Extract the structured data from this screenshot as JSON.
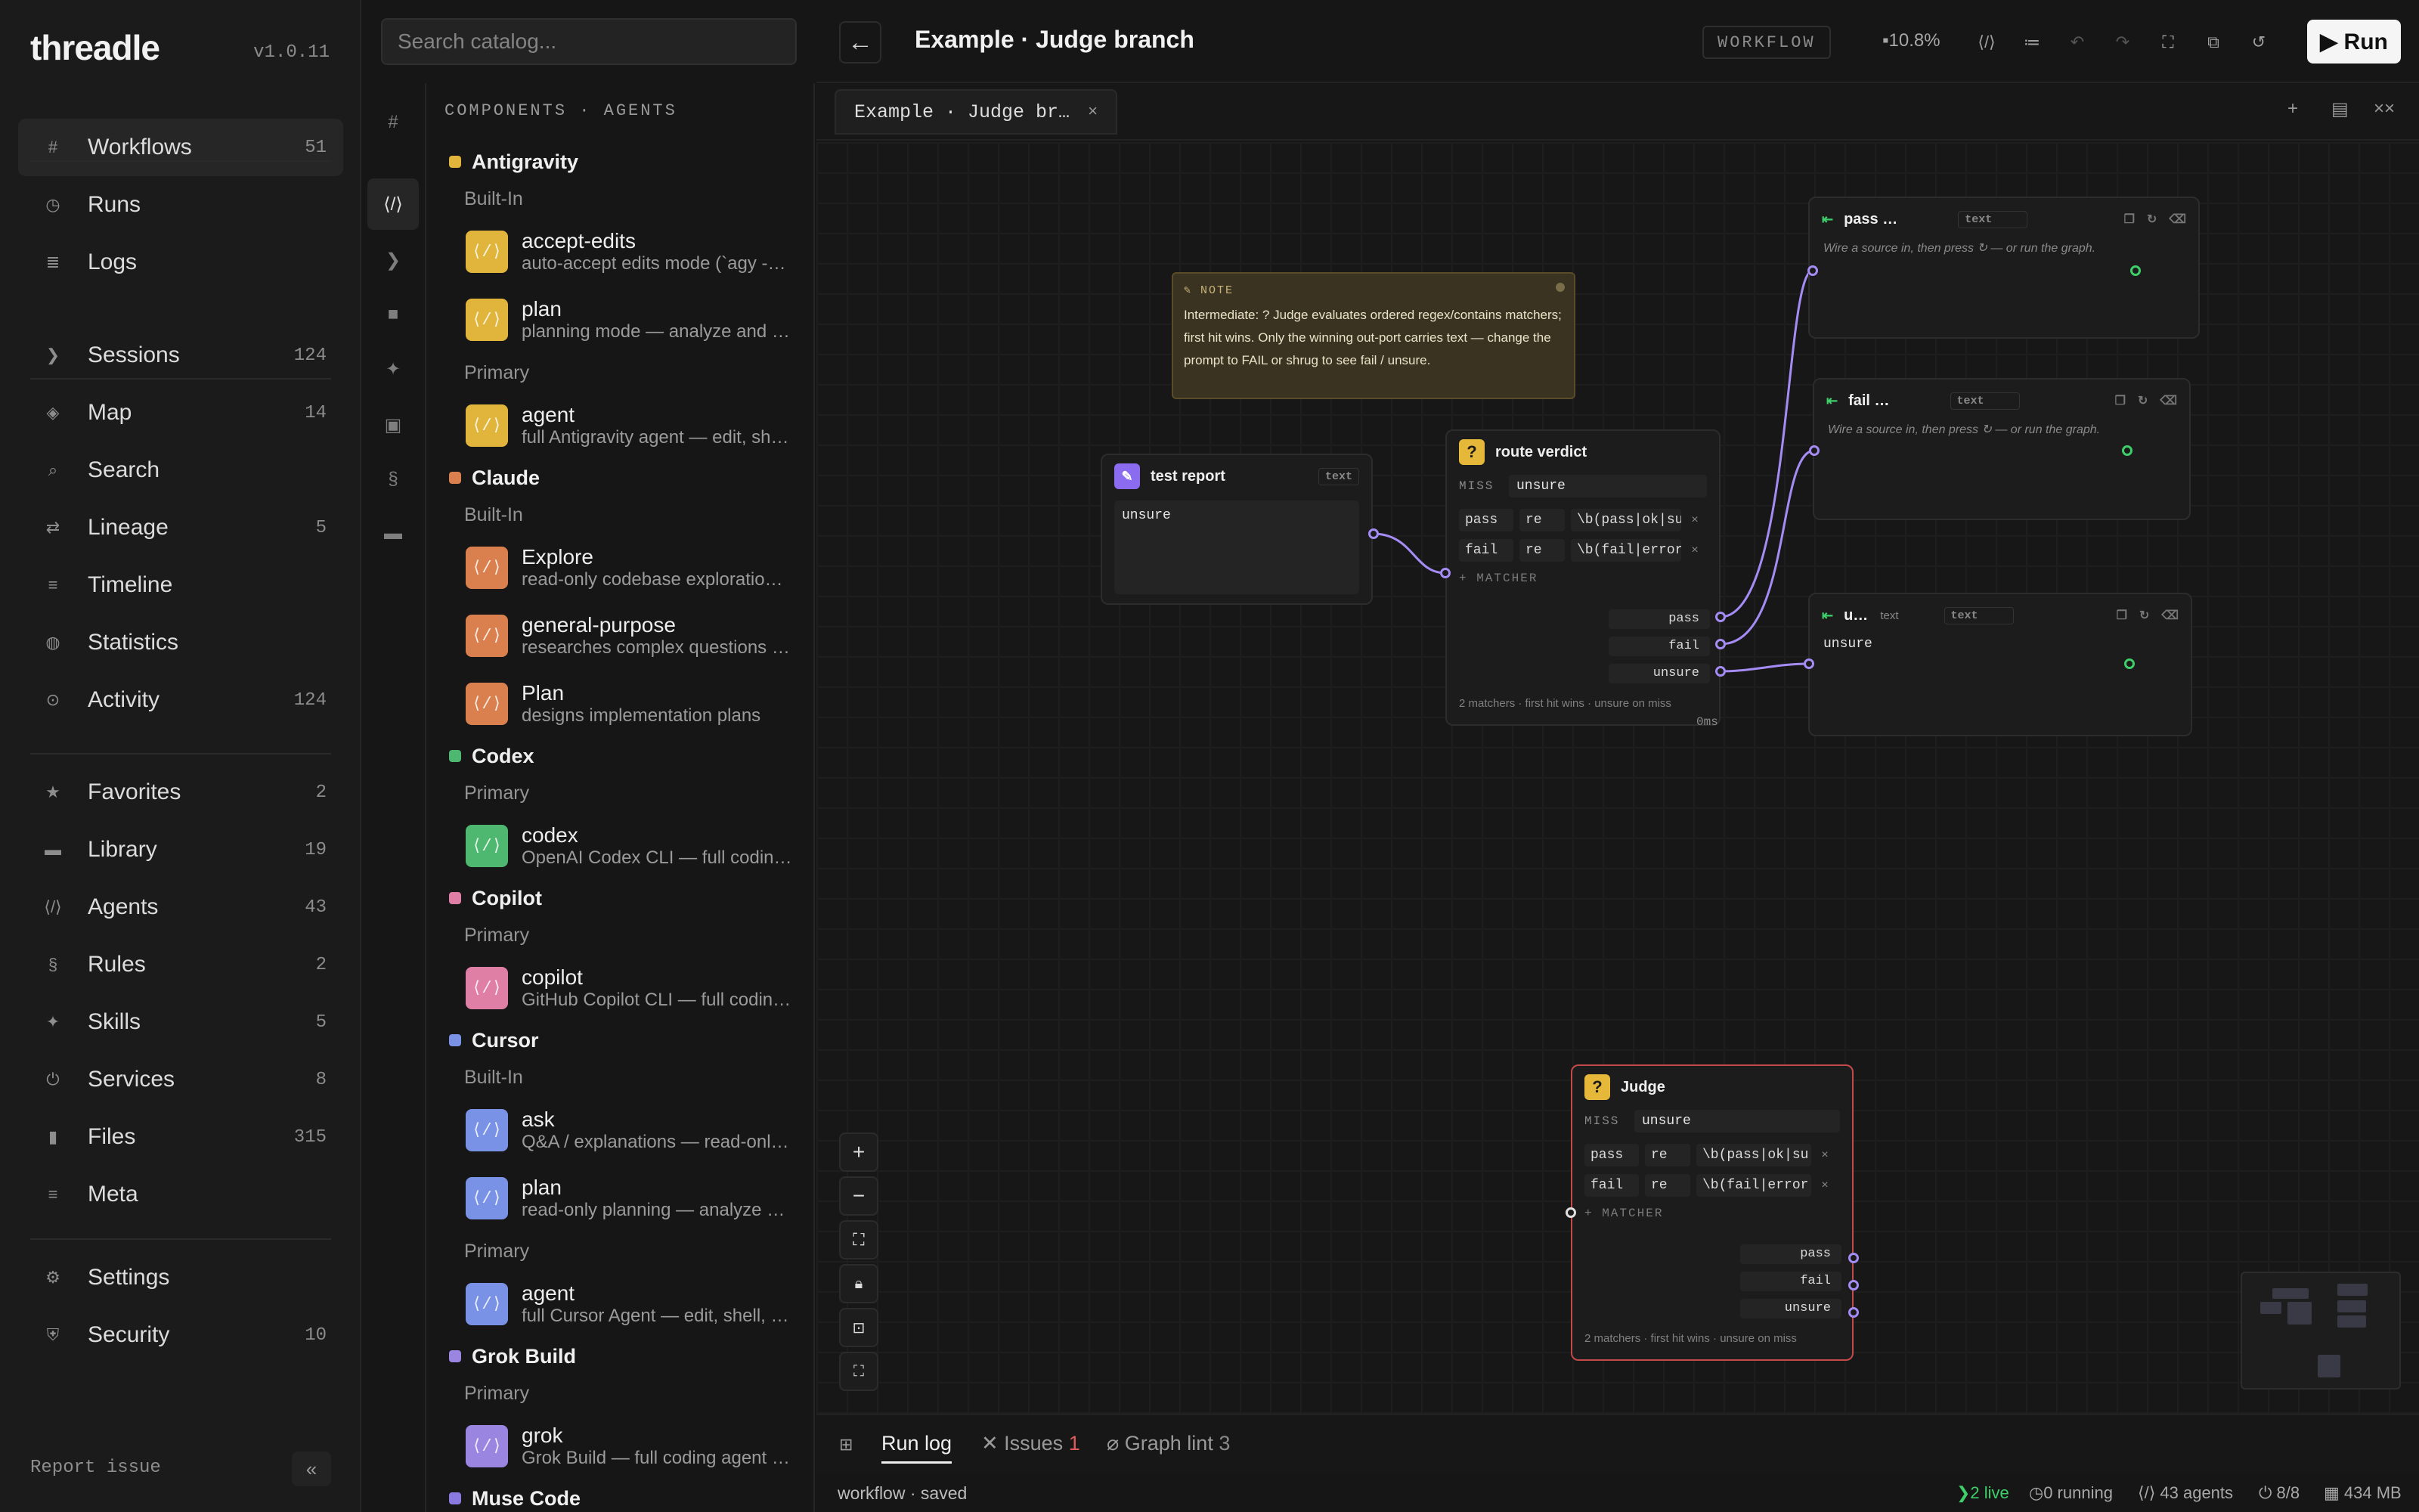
{
  "app": {
    "name": "threadle",
    "version": "v1.0.11"
  },
  "nav": {
    "group1": [
      {
        "icon": "#",
        "label": "Workflows",
        "count": "51",
        "active": true
      },
      {
        "icon": "◷",
        "label": "Runs",
        "count": ""
      },
      {
        "icon": "≣",
        "label": "Logs",
        "count": ""
      }
    ],
    "group2": [
      {
        "icon": "❯",
        "label": "Sessions",
        "count": "124"
      },
      {
        "icon": "◈",
        "label": "Map",
        "count": "14"
      },
      {
        "icon": "⌕",
        "label": "Search",
        "count": ""
      },
      {
        "icon": "⇄",
        "label": "Lineage",
        "count": "5"
      },
      {
        "icon": "≡",
        "label": "Timeline",
        "count": ""
      },
      {
        "icon": "◍",
        "label": "Statistics",
        "count": ""
      },
      {
        "icon": "⊙",
        "label": "Activity",
        "count": "124"
      }
    ],
    "group3": [
      {
        "icon": "★",
        "label": "Favorites",
        "count": "2"
      },
      {
        "icon": "▬",
        "label": "Library",
        "count": "19"
      },
      {
        "icon": "⟨/⟩",
        "label": "Agents",
        "count": "43"
      },
      {
        "icon": "§",
        "label": "Rules",
        "count": "2"
      },
      {
        "icon": "✦",
        "label": "Skills",
        "count": "5"
      },
      {
        "icon": "⏻",
        "label": "Services",
        "count": "8"
      },
      {
        "icon": "▮",
        "label": "Files",
        "count": "315"
      },
      {
        "icon": "≡",
        "label": "Meta",
        "count": ""
      }
    ],
    "group4": [
      {
        "icon": "⚙",
        "label": "Settings",
        "count": ""
      },
      {
        "icon": "⛨",
        "label": "Security",
        "count": "10"
      }
    ],
    "report_issue": "Report issue",
    "collapse_glyph": "«"
  },
  "rail": [
    "#",
    "⟨/⟩",
    "❯",
    "■",
    "✦",
    "▣",
    "§",
    "▬"
  ],
  "catalog": {
    "search_placeholder": "Search catalog...",
    "heading": "COMPONENTS · AGENTS",
    "groups": [
      {
        "name": "Antigravity",
        "color": "#e1b43c",
        "sections": [
          {
            "label": "Built-In",
            "items": [
              {
                "name": "accept-edits",
                "desc": "auto-accept edits mode (`agy -…"
              },
              {
                "name": "plan",
                "desc": "planning mode — analyze and …"
              }
            ]
          },
          {
            "label": "Primary",
            "items": [
              {
                "name": "agent",
                "desc": "full Antigravity agent — edit, sh…"
              }
            ]
          }
        ]
      },
      {
        "name": "Claude",
        "color": "#d9804e",
        "sections": [
          {
            "label": "Built-In",
            "items": [
              {
                "name": "Explore",
                "desc": "read-only codebase exploratio…"
              },
              {
                "name": "general-purpose",
                "desc": "researches complex questions …"
              },
              {
                "name": "Plan",
                "desc": "designs implementation plans"
              }
            ]
          }
        ]
      },
      {
        "name": "Codex",
        "color": "#4fb870",
        "sections": [
          {
            "label": "Primary",
            "items": [
              {
                "name": "codex",
                "desc": "OpenAI Codex CLI — full codin…"
              }
            ]
          }
        ]
      },
      {
        "name": "Copilot",
        "color": "#e07fa6",
        "sections": [
          {
            "label": "Primary",
            "items": [
              {
                "name": "copilot",
                "desc": "GitHub Copilot CLI — full codin…"
              }
            ]
          }
        ]
      },
      {
        "name": "Cursor",
        "color": "#7a92e6",
        "sections": [
          {
            "label": "Built-In",
            "items": [
              {
                "name": "ask",
                "desc": "Q&A / explanations — read-onl…"
              },
              {
                "name": "plan",
                "desc": "read-only planning — analyze a…"
              }
            ]
          },
          {
            "label": "Primary",
            "items": [
              {
                "name": "agent",
                "desc": "full Cursor Agent — edit, shell, …"
              }
            ]
          }
        ]
      },
      {
        "name": "Grok Build",
        "color": "#9a86e0",
        "sections": [
          {
            "label": "Primary",
            "items": [
              {
                "name": "grok",
                "desc": "Grok Build — full coding agent (…"
              }
            ]
          }
        ]
      },
      {
        "name": "Muse Code",
        "color": "#8a7ae0",
        "sections": []
      }
    ]
  },
  "header": {
    "back_glyph": "←",
    "title": "Example · Judge branch",
    "mode": "WORKFLOW",
    "zoom": "10.8%",
    "run_label": "▶ Run"
  },
  "tabs": [
    {
      "label": "Example · Judge br…",
      "close": "×"
    }
  ],
  "canvas": {
    "note": {
      "label": "✎ NOTE",
      "text": "Intermediate: ? Judge evaluates ordered regex/contains matchers; first hit wins. Only the winning out-port carries text — change the prompt to FAIL or shrug to see fail / unsure."
    },
    "test_report": {
      "title": "test report",
      "type": "text",
      "value": "unsure"
    },
    "route_verdict": {
      "title": "route verdict",
      "miss_label": "MISS",
      "miss_value": "unsure",
      "matchers": [
        {
          "port": "pass",
          "mode": "re",
          "pattern": "\\b(pass|ok|su"
        },
        {
          "port": "fail",
          "mode": "re",
          "pattern": "\\b(fail|error"
        }
      ],
      "add_matcher": "+ MATCHER",
      "outputs": [
        "pass",
        "fail",
        "unsure"
      ],
      "footer": "2 matchers · first hit wins · unsure on miss",
      "timing": "0ms"
    },
    "judge": {
      "title": "Judge",
      "miss_label": "MISS",
      "miss_value": "unsure",
      "matchers": [
        {
          "port": "pass",
          "mode": "re",
          "pattern": "\\b(pass|ok|su"
        },
        {
          "port": "fail",
          "mode": "re",
          "pattern": "\\b(fail|error"
        }
      ],
      "add_matcher": "+ MATCHER",
      "outputs": [
        "pass",
        "fail",
        "unsure"
      ],
      "footer": "2 matchers · first hit wins · unsure on miss"
    },
    "sinks": [
      {
        "title": "pass …",
        "type": "text",
        "hint": "Wire a source in, then press ↻ — or run the graph."
      },
      {
        "title": "fail …",
        "type": "text",
        "hint": "Wire a source in, then press ↻ — or run the graph."
      },
      {
        "title": "u…",
        "type": "text",
        "value": "unsure"
      }
    ]
  },
  "bottom": {
    "tabs": [
      {
        "label": "Run log",
        "badge": ""
      },
      {
        "label": "✕ Issues",
        "badge": "1"
      },
      {
        "label": "⌀ Graph lint",
        "badge": "3"
      }
    ]
  },
  "status": {
    "left": "workflow · saved",
    "live": "❯2 live",
    "running": "◷0 running",
    "agents": "⟨/⟩ 43 agents",
    "services": "⏻ 8/8",
    "memory": "▦ 434 MB"
  },
  "colors": {
    "accent": "#a58cf5",
    "ok": "#3ecf6a",
    "judge_border": "#c44a4a",
    "note": "#3a3322"
  }
}
